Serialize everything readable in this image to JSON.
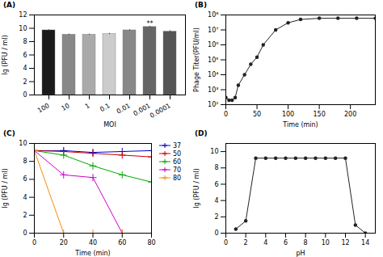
{
  "chart_data": [
    {
      "type": "bar",
      "title": "(A)",
      "categories": [
        "100",
        "10",
        "1",
        "0.1",
        "0.01",
        "0.001",
        "0.0001"
      ],
      "values": [
        9.7,
        9.05,
        9.05,
        9.15,
        9.7,
        10.2,
        9.5
      ],
      "errors": [
        0.1,
        0.1,
        0.08,
        0.1,
        0.1,
        0.12,
        0.15
      ],
      "colors": [
        "#1a1a1a",
        "#888888",
        "#aaaaaa",
        "#cccccc",
        "#888888",
        "#666666",
        "#555555"
      ],
      "xlabel": "MOI",
      "ylabel": "lg (PFU / ml)",
      "ylim": [
        0,
        12
      ],
      "yticks": [
        0,
        2,
        4,
        6,
        8,
        10,
        12
      ],
      "annotations": [
        {
          "text": "**",
          "x": "0.001",
          "y": 10.38
        }
      ]
    },
    {
      "type": "line",
      "title": "(B)",
      "x": [
        0,
        5,
        10,
        15,
        20,
        30,
        40,
        50,
        60,
        80,
        100,
        120,
        150,
        180,
        210,
        240
      ],
      "values": [
        300,
        200,
        200,
        300,
        2000,
        10000,
        50000,
        150000,
        1000000,
        10000000,
        30000000,
        50000000,
        60000000,
        60000000,
        60000000,
        60000000
      ],
      "color": "#222222",
      "marker": "o",
      "xlabel": "Time (min)",
      "ylabel": "Phage Titer(PFU/ml)",
      "log": "y",
      "xlim": [
        0,
        240
      ],
      "xticks": [
        0,
        50,
        100,
        150,
        200
      ],
      "ylim": [
        100,
        100000000
      ],
      "yticks": [
        {
          "value": 100,
          "label": "10²"
        },
        {
          "value": 1000,
          "label": "10³"
        },
        {
          "value": 10000,
          "label": "10⁴"
        },
        {
          "value": 100000,
          "label": "10⁵"
        },
        {
          "value": 1000000,
          "label": "10⁶"
        },
        {
          "value": 10000000,
          "label": "10⁷"
        },
        {
          "value": 100000000,
          "label": "10⁸"
        }
      ]
    },
    {
      "type": "line",
      "title": "(C)",
      "xlabel": "Time (min)",
      "ylabel": "lg (PFU / ml)",
      "xlim": [
        0,
        80
      ],
      "xticks": [
        0,
        20,
        40,
        60,
        80
      ],
      "ylim": [
        0,
        10
      ],
      "yticks": [
        0,
        2,
        4,
        6,
        8,
        10
      ],
      "legend": "upper right",
      "series": [
        {
          "name": "37",
          "color": "#0000cc",
          "marker": "+",
          "x": [
            0,
            20,
            40,
            60,
            80
          ],
          "values": [
            9.2,
            9.2,
            9.0,
            9.1,
            9.2
          ]
        },
        {
          "name": "50",
          "color": "#cc0000",
          "marker": "+",
          "x": [
            0,
            20,
            40,
            60,
            80
          ],
          "values": [
            9.2,
            9.1,
            8.9,
            8.7,
            8.5
          ]
        },
        {
          "name": "60",
          "color": "#00aa00",
          "marker": "+",
          "x": [
            0,
            20,
            40,
            60,
            80
          ],
          "values": [
            9.2,
            8.7,
            7.5,
            6.5,
            5.7
          ]
        },
        {
          "name": "70",
          "color": "#cc00cc",
          "marker": "+",
          "x": [
            0,
            20,
            40,
            60,
            80
          ],
          "values": [
            9.2,
            6.5,
            6.2,
            0.0,
            0.0
          ]
        },
        {
          "name": "80",
          "color": "#ff8800",
          "marker": "+",
          "x": [
            0,
            20,
            40,
            60
          ],
          "values": [
            9.2,
            0.0,
            0.0,
            0.0
          ]
        }
      ]
    },
    {
      "type": "line",
      "title": "(D)",
      "x": [
        1,
        2,
        3,
        4,
        5,
        6,
        7,
        8,
        9,
        10,
        11,
        12,
        13,
        14
      ],
      "values": [
        0.5,
        1.5,
        9.2,
        9.2,
        9.2,
        9.2,
        9.2,
        9.2,
        9.2,
        9.2,
        9.2,
        9.2,
        1.0,
        0.0
      ],
      "color": "#222222",
      "marker": "o",
      "xlabel": "pH",
      "ylabel": "lg (PFU / ml)",
      "xlim": [
        0,
        15
      ],
      "xticks": [
        0,
        2,
        4,
        6,
        8,
        10,
        12,
        14
      ],
      "ylim": [
        0,
        11
      ],
      "yticks": [
        0,
        2,
        4,
        6,
        8,
        10
      ]
    }
  ]
}
